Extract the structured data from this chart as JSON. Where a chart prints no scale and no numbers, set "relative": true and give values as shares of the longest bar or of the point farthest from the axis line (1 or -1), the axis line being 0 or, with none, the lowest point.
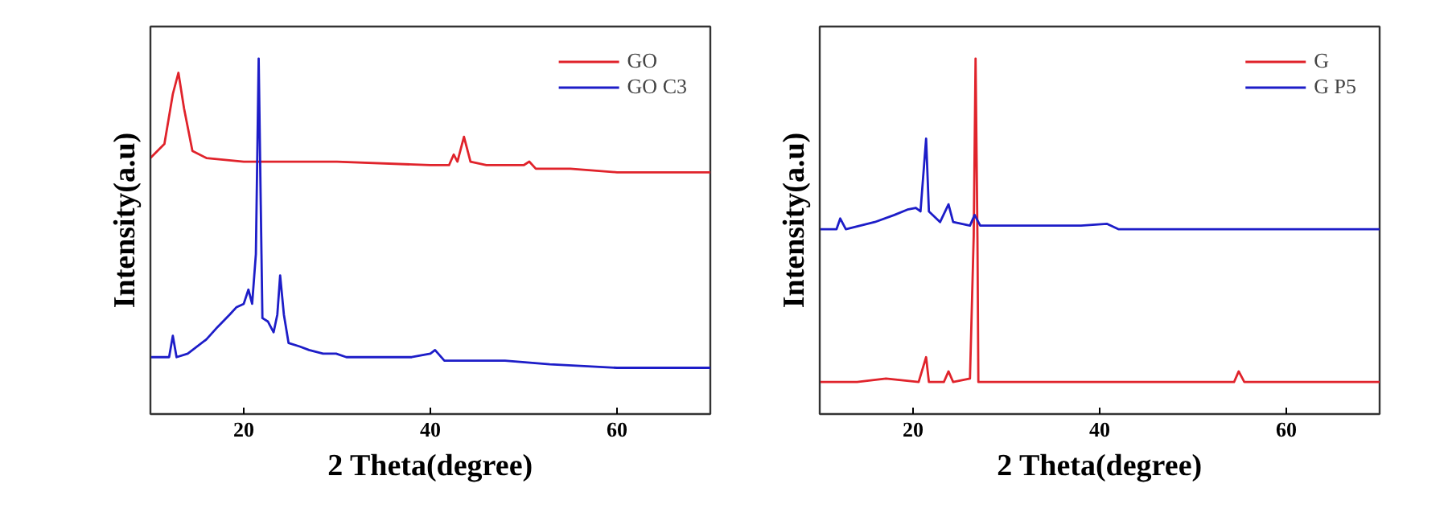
{
  "chart_data": [
    {
      "type": "line",
      "relative": true,
      "xlabel": "2 Theta(degree)",
      "ylabel": "Intensity(a.u)",
      "xlim": [
        10,
        70
      ],
      "xticks": [
        20,
        40,
        60
      ],
      "legend": "top right",
      "grid": false,
      "marker": "none",
      "line_style": "solid",
      "series": [
        {
          "name": "GO",
          "color": "#e0232b",
          "x": [
            10.0,
            11.5,
            12.4,
            13.0,
            13.6,
            14.5,
            16.0,
            20.0,
            30.0,
            40.0,
            42.0,
            42.5,
            42.9,
            43.6,
            44.3,
            46.0,
            50.0,
            50.6,
            51.3,
            55.0,
            60.0,
            70.0
          ],
          "values": [
            0.72,
            0.76,
            0.9,
            0.96,
            0.86,
            0.74,
            0.72,
            0.71,
            0.71,
            0.7,
            0.7,
            0.73,
            0.71,
            0.78,
            0.71,
            0.7,
            0.7,
            0.71,
            0.69,
            0.69,
            0.68,
            0.68
          ]
        },
        {
          "name": "GO C3",
          "color": "#1d1dc8",
          "x": [
            10.0,
            12.0,
            12.4,
            12.8,
            14.0,
            16.0,
            17.2,
            18.5,
            19.2,
            20.0,
            20.5,
            20.9,
            21.3,
            21.6,
            21.9,
            22.0,
            22.6,
            23.2,
            23.6,
            23.9,
            24.3,
            24.8,
            26.0,
            27.0,
            28.5,
            29.9,
            31.0,
            34.0,
            36.5,
            38.0,
            40.0,
            40.5,
            41.5,
            44.0,
            48.0,
            52.8,
            60.0,
            70.0
          ],
          "values": [
            0.16,
            0.16,
            0.22,
            0.16,
            0.17,
            0.21,
            0.245,
            0.28,
            0.3,
            0.31,
            0.35,
            0.31,
            0.45,
            1.0,
            0.45,
            0.27,
            0.26,
            0.23,
            0.28,
            0.39,
            0.28,
            0.2,
            0.19,
            0.18,
            0.17,
            0.17,
            0.16,
            0.16,
            0.16,
            0.16,
            0.17,
            0.18,
            0.15,
            0.15,
            0.15,
            0.14,
            0.13,
            0.13
          ]
        }
      ]
    },
    {
      "type": "line",
      "relative": true,
      "xlabel": "2 Theta(degree)",
      "ylabel": "Intensity(a.u)",
      "xlim": [
        10,
        70
      ],
      "xticks": [
        20,
        40,
        60
      ],
      "legend": "top right",
      "grid": false,
      "marker": "none",
      "line_style": "solid",
      "series": [
        {
          "name": "G",
          "color": "#e0232b",
          "x": [
            10.0,
            14.0,
            17.1,
            20.6,
            21.4,
            21.7,
            23.3,
            23.8,
            24.3,
            26.1,
            26.5,
            26.7,
            26.9,
            27.0,
            35.0,
            44.8,
            54.4,
            54.9,
            55.5,
            62.0,
            70.0
          ],
          "values": [
            0.09,
            0.09,
            0.1,
            0.09,
            0.16,
            0.09,
            0.09,
            0.12,
            0.09,
            0.1,
            0.5,
            1.0,
            0.5,
            0.09,
            0.09,
            0.09,
            0.09,
            0.12,
            0.09,
            0.09,
            0.09
          ]
        },
        {
          "name": "G P5",
          "color": "#1d1dc8",
          "x": [
            10.0,
            11.8,
            12.2,
            12.8,
            15.9,
            18.0,
            19.4,
            20.3,
            20.8,
            21.4,
            21.7,
            22.9,
            23.8,
            24.3,
            26.1,
            26.6,
            27.2,
            32.0,
            38.0,
            40.8,
            42.0,
            50.0,
            60.0,
            70.0
          ],
          "values": [
            0.52,
            0.52,
            0.55,
            0.52,
            0.54,
            0.56,
            0.575,
            0.58,
            0.57,
            0.775,
            0.57,
            0.54,
            0.59,
            0.54,
            0.53,
            0.56,
            0.53,
            0.53,
            0.53,
            0.535,
            0.52,
            0.52,
            0.52,
            0.52
          ]
        }
      ]
    }
  ]
}
